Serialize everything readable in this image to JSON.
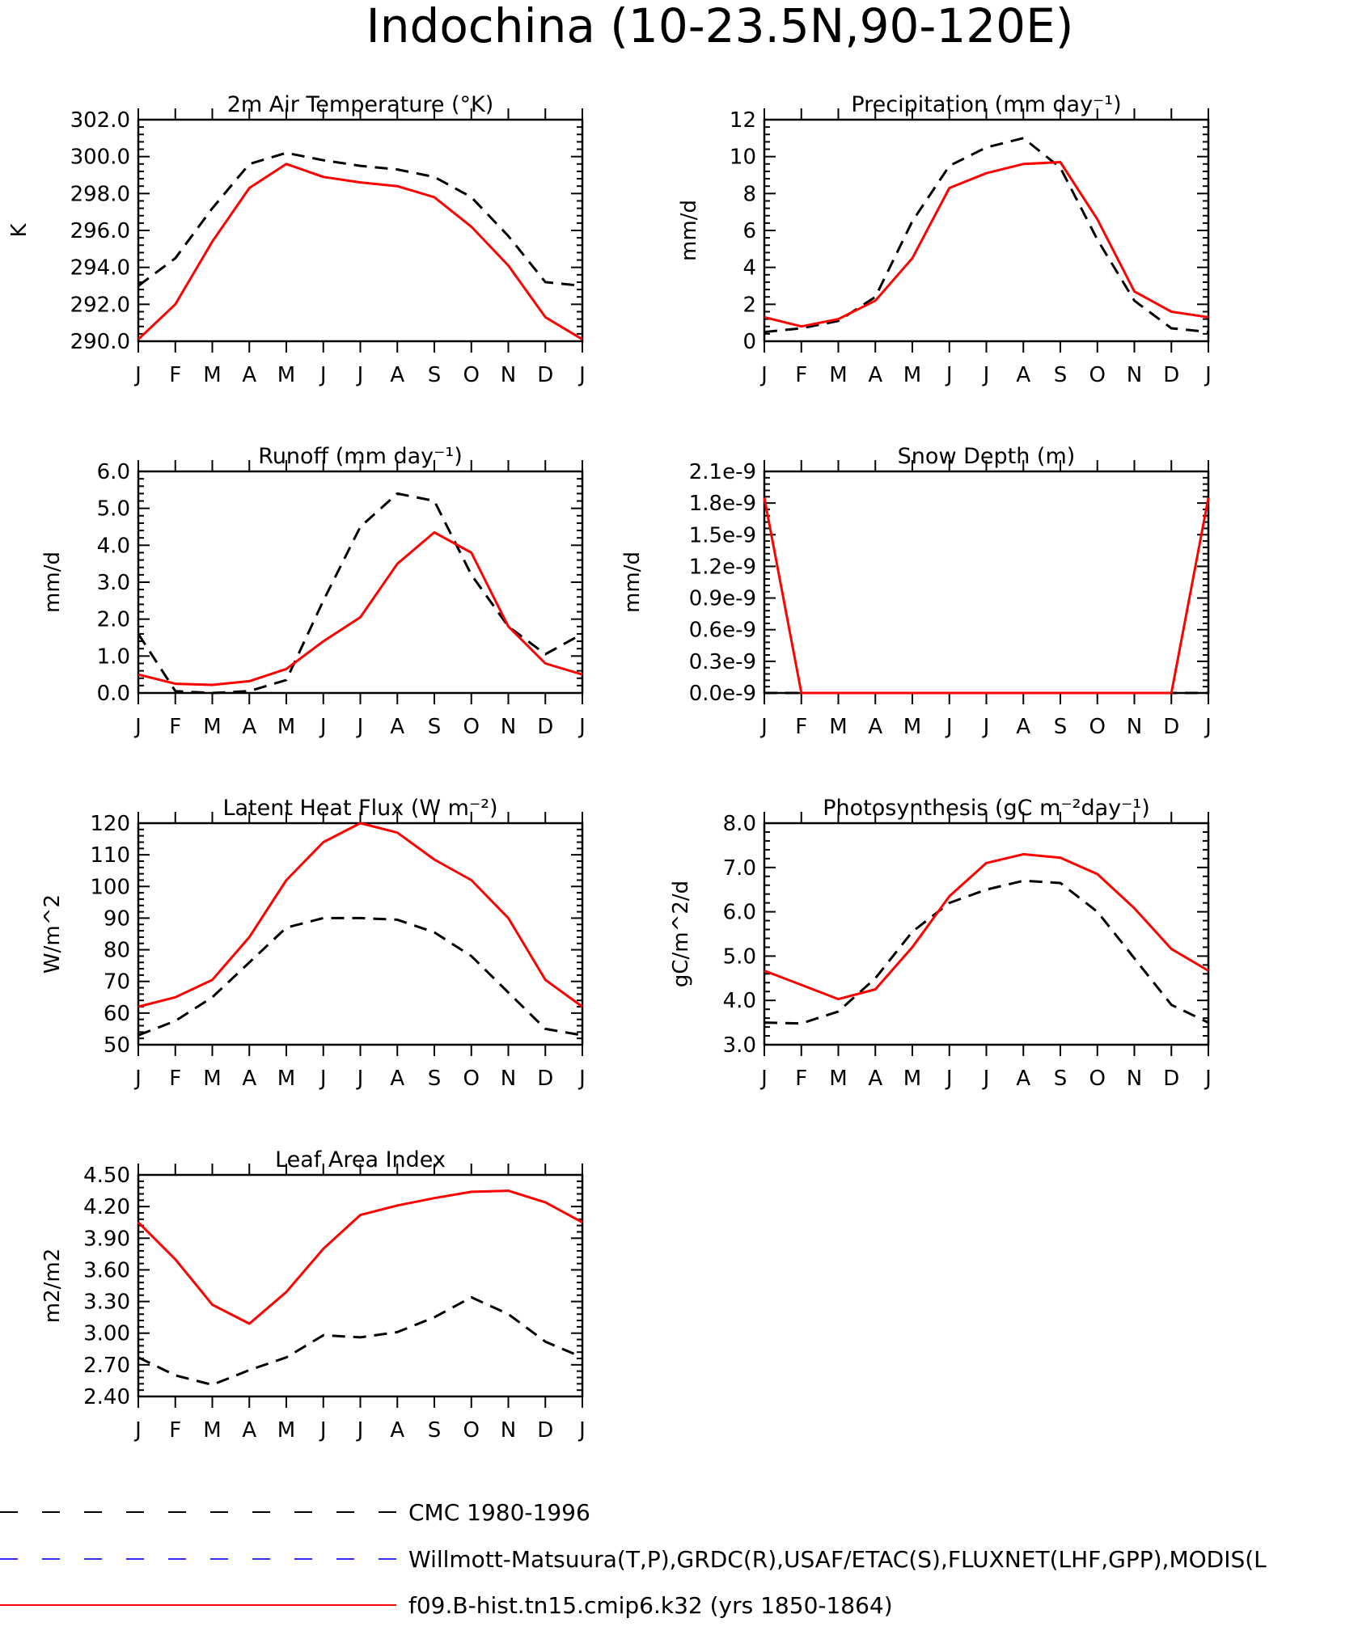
{
  "title": "Indochina (10-23.5N,90-120E)",
  "months": [
    "J",
    "F",
    "M",
    "A",
    "M",
    "J",
    "J",
    "A",
    "S",
    "O",
    "N",
    "D",
    "J"
  ],
  "legend": [
    {
      "label": "CMC 1980-1996",
      "color": "#000000",
      "dash": true
    },
    {
      "label": "Willmott-Matsuura(T,P),GRDC(R),USAF/ETAC(S),FLUXNET(LHF,GPP),MODIS(L",
      "color": "#3030ff",
      "dash": true
    },
    {
      "label": "f09.B-hist.tn15.cmip6.k32 (yrs 1850-1864)",
      "color": "#ff0000",
      "dash": false
    }
  ],
  "chart_data": [
    {
      "type": "line",
      "title": "2m Air Temperature (°K)",
      "ylabel": "K",
      "ylim": [
        290,
        302
      ],
      "yticks": [
        "290.0",
        "292.0",
        "294.0",
        "296.0",
        "298.0",
        "300.0",
        "302.0"
      ],
      "x": [
        "J",
        "F",
        "M",
        "A",
        "M",
        "J",
        "J",
        "A",
        "S",
        "O",
        "N",
        "D",
        "J"
      ],
      "series": [
        {
          "name": "CMC 1980-1996",
          "color": "#000000",
          "dash": true,
          "values": [
            293.0,
            294.5,
            297.2,
            299.6,
            300.2,
            299.8,
            299.5,
            299.3,
            298.9,
            297.8,
            295.7,
            293.2,
            293.0
          ]
        },
        {
          "name": "f09.B-hist.tn15.cmip6.k32 (yrs 1850-1864)",
          "color": "#ff0000",
          "dash": false,
          "values": [
            290.1,
            292.0,
            295.4,
            298.3,
            299.6,
            298.9,
            298.6,
            298.4,
            297.8,
            296.2,
            294.1,
            291.3,
            290.1
          ]
        }
      ]
    },
    {
      "type": "line",
      "title": "Precipitation (mm day⁻¹)",
      "ylabel": "mm/d",
      "ylim": [
        0,
        12
      ],
      "yticks": [
        "0",
        "2",
        "4",
        "6",
        "8",
        "10",
        "12"
      ],
      "x": [
        "J",
        "F",
        "M",
        "A",
        "M",
        "J",
        "J",
        "A",
        "S",
        "O",
        "N",
        "D",
        "J"
      ],
      "series": [
        {
          "name": "CMC 1980-1996",
          "color": "#000000",
          "dash": true,
          "values": [
            0.5,
            0.7,
            1.1,
            2.4,
            6.5,
            9.5,
            10.5,
            11.0,
            9.4,
            5.5,
            2.2,
            0.7,
            0.5
          ]
        },
        {
          "name": "f09.B-hist.tn15.cmip6.k32 (yrs 1850-1864)",
          "color": "#ff0000",
          "dash": false,
          "values": [
            1.3,
            0.8,
            1.2,
            2.2,
            4.5,
            8.3,
            9.1,
            9.6,
            9.7,
            6.6,
            2.7,
            1.6,
            1.3
          ]
        }
      ]
    },
    {
      "type": "line",
      "title": "Runoff (mm day⁻¹)",
      "ylabel": "mm/d",
      "ylim": [
        0,
        6
      ],
      "yticks": [
        "0.0",
        "1.0",
        "2.0",
        "3.0",
        "4.0",
        "5.0",
        "6.0"
      ],
      "x": [
        "J",
        "F",
        "M",
        "A",
        "M",
        "J",
        "J",
        "A",
        "S",
        "O",
        "N",
        "D",
        "J"
      ],
      "series": [
        {
          "name": "CMC 1980-1996",
          "color": "#000000",
          "dash": true,
          "values": [
            1.6,
            0.05,
            0.0,
            0.05,
            0.35,
            2.5,
            4.5,
            5.4,
            5.2,
            3.2,
            1.8,
            1.05,
            1.6
          ]
        },
        {
          "name": "f09.B-hist.tn15.cmip6.k32 (yrs 1850-1864)",
          "color": "#ff0000",
          "dash": false,
          "values": [
            0.5,
            0.25,
            0.22,
            0.32,
            0.65,
            1.4,
            2.05,
            3.5,
            4.35,
            3.8,
            1.8,
            0.8,
            0.5
          ]
        }
      ]
    },
    {
      "type": "line",
      "title": "Snow Depth (m)",
      "ylabel": "mm/d",
      "ylim": [
        0,
        2.1
      ],
      "yunits": "e-9",
      "yticks": [
        "0.0e-9",
        "0.3e-9",
        "0.6e-9",
        "0.9e-9",
        "1.2e-9",
        "1.5e-9",
        "1.8e-9",
        "2.1e-9"
      ],
      "x": [
        "J",
        "F",
        "M",
        "A",
        "M",
        "J",
        "J",
        "A",
        "S",
        "O",
        "N",
        "D",
        "J"
      ],
      "series": [
        {
          "name": "CMC 1980-1996",
          "color": "#000000",
          "dash": true,
          "values": [
            0,
            0,
            0,
            0,
            0,
            0,
            0,
            0,
            0,
            0,
            0,
            0,
            0
          ]
        },
        {
          "name": "f09.B-hist.tn15.cmip6.k32 (yrs 1850-1864)",
          "color": "#ff0000",
          "dash": false,
          "values": [
            1.85,
            0,
            0,
            0,
            0,
            0,
            0,
            0,
            0,
            0,
            0,
            0,
            1.85
          ]
        }
      ]
    },
    {
      "type": "line",
      "title": "Latent Heat Flux (W m⁻²)",
      "ylabel": "W/m^2",
      "ylim": [
        50,
        120
      ],
      "yticks": [
        "50",
        "60",
        "70",
        "80",
        "90",
        "100",
        "110",
        "120"
      ],
      "x": [
        "J",
        "F",
        "M",
        "A",
        "M",
        "J",
        "J",
        "A",
        "S",
        "O",
        "N",
        "D",
        "J"
      ],
      "series": [
        {
          "name": "CMC 1980-1996",
          "color": "#000000",
          "dash": true,
          "values": [
            53.0,
            57.5,
            65.0,
            76.0,
            87.0,
            90.0,
            90.0,
            89.5,
            85.5,
            78.0,
            66.5,
            55.0,
            53.0
          ]
        },
        {
          "name": "f09.B-hist.tn15.cmip6.k32 (yrs 1850-1864)",
          "color": "#ff0000",
          "dash": false,
          "values": [
            62.0,
            65.0,
            70.5,
            84.0,
            102.0,
            114.0,
            120.0,
            117.0,
            108.5,
            102.0,
            90.0,
            70.5,
            62.0
          ]
        }
      ]
    },
    {
      "type": "line",
      "title": "Photosynthesis (gC m⁻²day⁻¹)",
      "ylabel": "gC/m^2/d",
      "ylim": [
        3,
        8
      ],
      "yticks": [
        "3.0",
        "4.0",
        "5.0",
        "6.0",
        "7.0",
        "8.0"
      ],
      "x": [
        "J",
        "F",
        "M",
        "A",
        "M",
        "J",
        "J",
        "A",
        "S",
        "O",
        "N",
        "D",
        "J"
      ],
      "series": [
        {
          "name": "CMC 1980-1996",
          "color": "#000000",
          "dash": true,
          "values": [
            3.5,
            3.48,
            3.75,
            4.5,
            5.55,
            6.2,
            6.5,
            6.7,
            6.65,
            6.0,
            4.95,
            3.9,
            3.5
          ]
        },
        {
          "name": "f09.B-hist.tn15.cmip6.k32 (yrs 1850-1864)",
          "color": "#ff0000",
          "dash": false,
          "values": [
            4.67,
            4.35,
            4.03,
            4.25,
            5.2,
            6.35,
            7.1,
            7.3,
            7.22,
            6.85,
            6.08,
            5.16,
            4.67
          ]
        }
      ]
    },
    {
      "type": "line",
      "title": "Leaf Area Index",
      "ylabel": "m2/m2",
      "ylim": [
        2.4,
        4.5
      ],
      "yticks": [
        "2.40",
        "2.70",
        "3.00",
        "3.30",
        "3.60",
        "3.90",
        "4.20",
        "4.50"
      ],
      "x": [
        "J",
        "F",
        "M",
        "A",
        "M",
        "J",
        "J",
        "A",
        "S",
        "O",
        "N",
        "D",
        "J"
      ],
      "series": [
        {
          "name": "CMC 1980-1996",
          "color": "#000000",
          "dash": true,
          "values": [
            2.77,
            2.6,
            2.51,
            2.65,
            2.77,
            2.98,
            2.96,
            3.01,
            3.15,
            3.34,
            3.18,
            2.92,
            2.77
          ]
        },
        {
          "name": "f09.B-hist.tn15.cmip6.k32 (yrs 1850-1864)",
          "color": "#ff0000",
          "dash": false,
          "values": [
            4.05,
            3.7,
            3.27,
            3.09,
            3.39,
            3.8,
            4.12,
            4.21,
            4.28,
            4.34,
            4.35,
            4.24,
            4.05
          ]
        }
      ]
    }
  ]
}
